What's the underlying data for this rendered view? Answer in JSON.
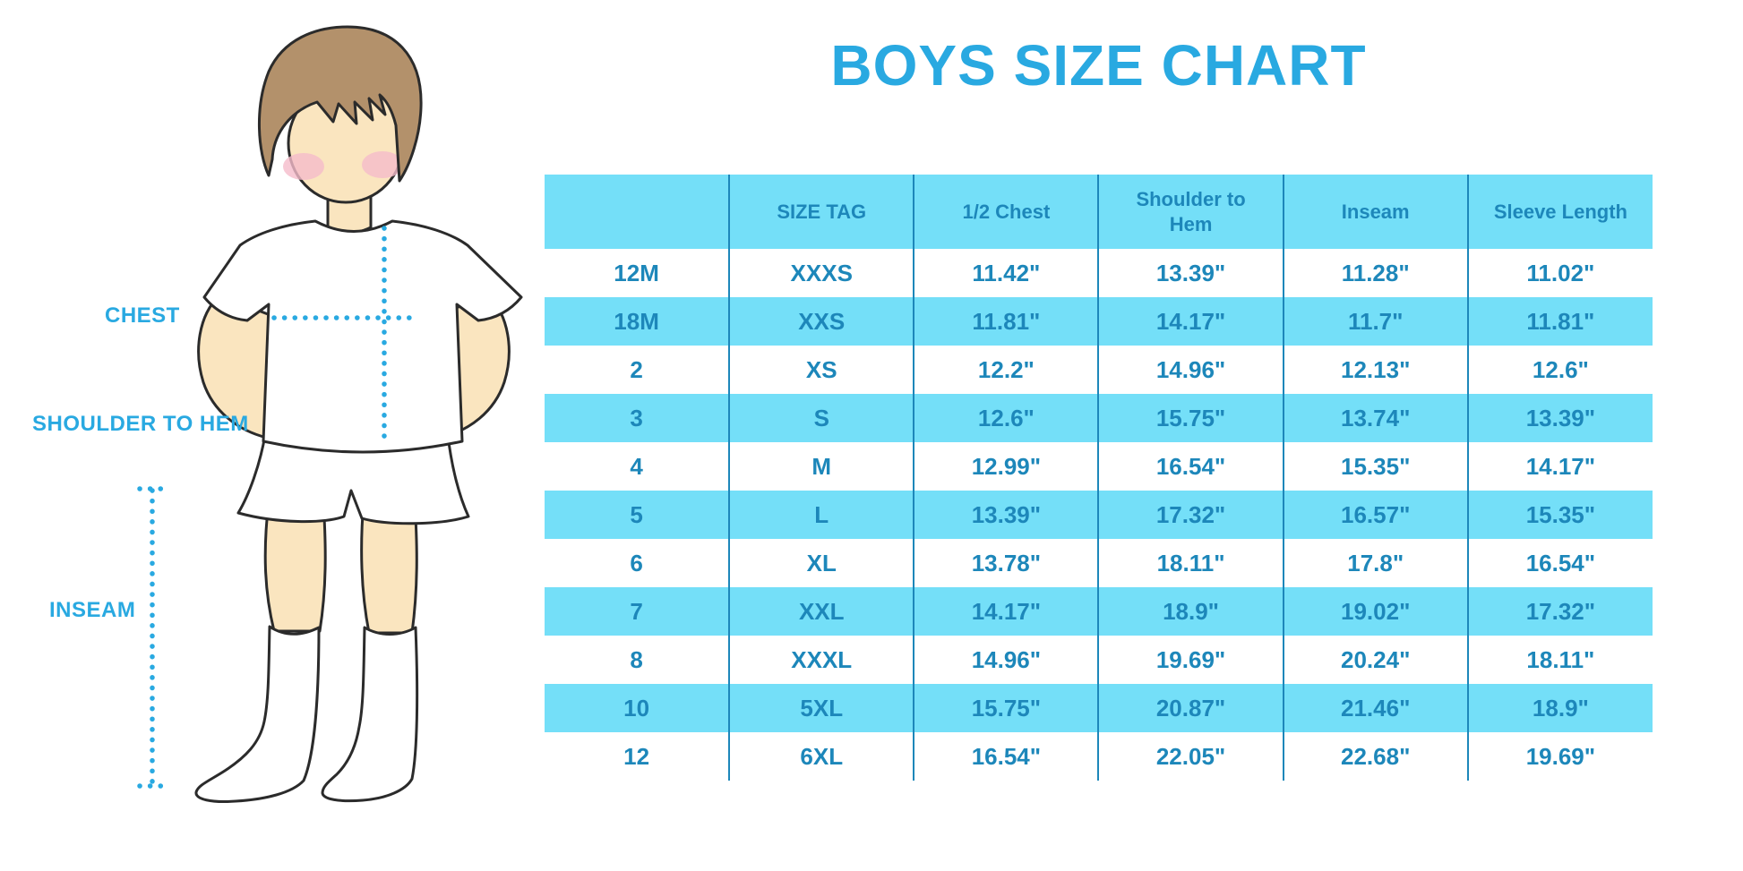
{
  "title": "BOYS SIZE CHART",
  "diagram": {
    "labels": {
      "chest": "CHEST",
      "shoulder_to_hem": "SHOULDER TO HEM",
      "inseam": "INSEAM"
    }
  },
  "table": {
    "headers": [
      "",
      "SIZE TAG",
      "1/2 Chest",
      "Shoulder to Hem",
      "Inseam",
      "Sleeve Length"
    ],
    "rows": [
      [
        "12M",
        "XXXS",
        "11.42\"",
        "13.39\"",
        "11.28\"",
        "11.02\""
      ],
      [
        "18M",
        "XXS",
        "11.81\"",
        "14.17\"",
        "11.7\"",
        "11.81\""
      ],
      [
        "2",
        "XS",
        "12.2\"",
        "14.96\"",
        "12.13\"",
        "12.6\""
      ],
      [
        "3",
        "S",
        "12.6\"",
        "15.75\"",
        "13.74\"",
        "13.39\""
      ],
      [
        "4",
        "M",
        "12.99\"",
        "16.54\"",
        "15.35\"",
        "14.17\""
      ],
      [
        "5",
        "L",
        "13.39\"",
        "17.32\"",
        "16.57\"",
        "15.35\""
      ],
      [
        "6",
        "XL",
        "13.78\"",
        "18.11\"",
        "17.8\"",
        "16.54\""
      ],
      [
        "7",
        "XXL",
        "14.17\"",
        "18.9\"",
        "19.02\"",
        "17.32\""
      ],
      [
        "8",
        "XXXL",
        "14.96\"",
        "19.69\"",
        "20.24\"",
        "18.11\""
      ],
      [
        "10",
        "5XL",
        "15.75\"",
        "20.87\"",
        "21.46\"",
        "18.9\""
      ],
      [
        "12",
        "6XL",
        "16.54\"",
        "22.05\"",
        "22.68\"",
        "19.69\""
      ]
    ]
  },
  "colors": {
    "accent": "#29A9E1",
    "table_text": "#1D87BA",
    "stripe": "#74DFF8",
    "skin": "#FAE5BF",
    "hair": "#B3916B",
    "outline": "#2B2B2B"
  }
}
